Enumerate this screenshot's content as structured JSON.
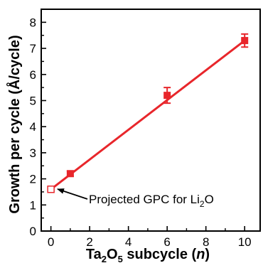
{
  "chart_data": {
    "type": "scatter",
    "title": "",
    "xlabel": "Ta2O5 subcycle (n)",
    "xlabel_parts": {
      "base": "Ta",
      "sub1": "2",
      "mid": "O",
      "sub2": "5",
      "rest": " subcycle (",
      "var": "n",
      "close": ")"
    },
    "ylabel": "Growth per cycle (Å/cycle)",
    "xlim": [
      -0.5,
      10.8
    ],
    "ylim": [
      0,
      8.5
    ],
    "xticks": [
      0,
      2,
      4,
      6,
      8,
      10
    ],
    "yticks": [
      0,
      1,
      2,
      3,
      4,
      5,
      6,
      7,
      8
    ],
    "series": [
      {
        "points": [
          {
            "x": 1,
            "y": 2.2,
            "err": 0.1
          },
          {
            "x": 6,
            "y": 5.2,
            "err": 0.3
          },
          {
            "x": 10,
            "y": 7.3,
            "err": 0.25
          }
        ],
        "color": "#e8262b",
        "marker": "filled-square"
      }
    ],
    "projected_point": {
      "x": 0,
      "y": 1.6,
      "marker": "open-square"
    },
    "fit_line": {
      "x_start": 0,
      "y_start": 1.6,
      "x_end": 10,
      "y_end": 7.3,
      "color": "#e8262b"
    },
    "annotation": {
      "text_main": "Projected GPC for Li",
      "sub": "2",
      "text_end": "O"
    },
    "grid": false,
    "legend": "none"
  }
}
